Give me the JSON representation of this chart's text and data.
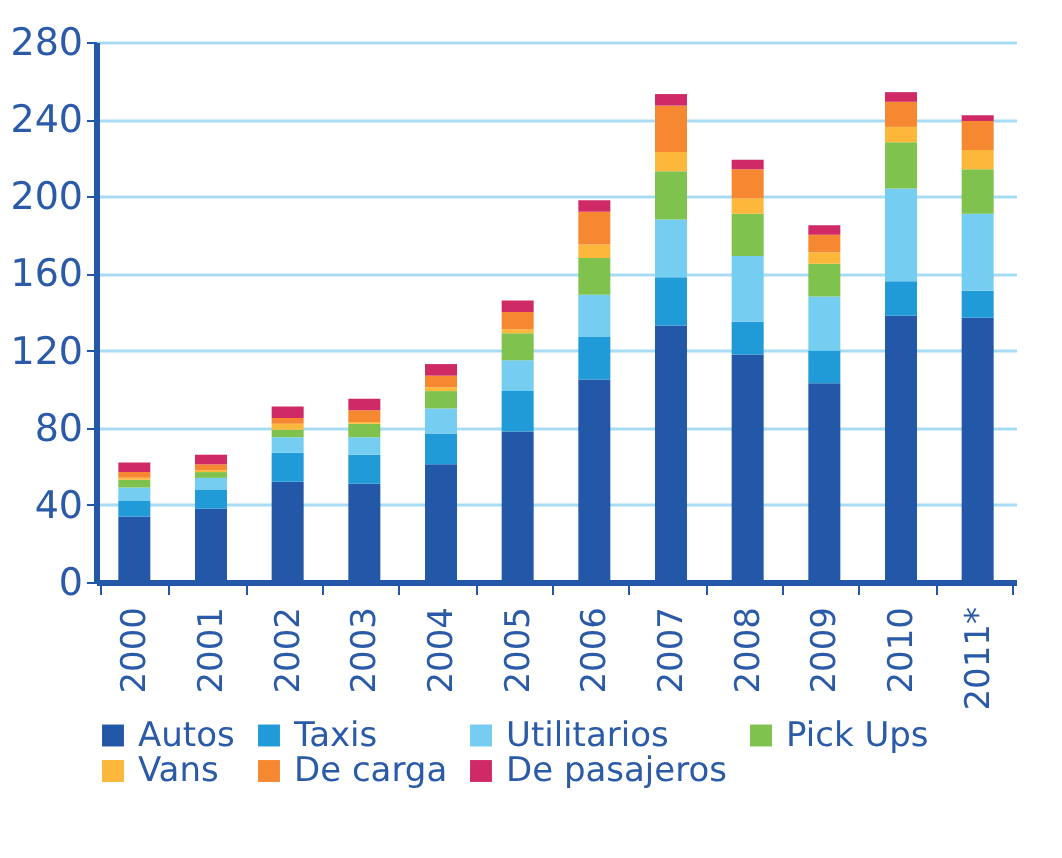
{
  "chart_data": {
    "type": "bar",
    "stacked": true,
    "legend": "bottom",
    "grid": "y",
    "categories": [
      "2000",
      "2001",
      "2002",
      "2003",
      "2004",
      "2005",
      "2006",
      "2007",
      "2008",
      "2009",
      "2010",
      "2011*"
    ],
    "ylim": [
      0,
      280
    ],
    "yticks": [
      0,
      40,
      80,
      120,
      160,
      200,
      240,
      280
    ],
    "series": [
      {
        "name": "Autos",
        "color": "#2358a8",
        "values": [
          34,
          38,
          52,
          51,
          61,
          78,
          105,
          133,
          118,
          103,
          138,
          137
        ]
      },
      {
        "name": "Taxis",
        "color": "#219bd7",
        "values": [
          8,
          10,
          15,
          15,
          16,
          21,
          22,
          25,
          17,
          17,
          18,
          14
        ]
      },
      {
        "name": "Utilitarios",
        "color": "#75cdf2",
        "values": [
          7,
          6,
          8,
          9,
          13,
          16,
          22,
          30,
          34,
          28,
          48,
          40
        ]
      },
      {
        "name": "Pick Ups",
        "color": "#7fc24e",
        "values": [
          4,
          3,
          4,
          7,
          9,
          14,
          19,
          25,
          22,
          17,
          24,
          23
        ]
      },
      {
        "name": "Vans",
        "color": "#fdb73a",
        "values": [
          1,
          1,
          3,
          1,
          2,
          2,
          7,
          10,
          8,
          6,
          8,
          10
        ]
      },
      {
        "name": "De carga",
        "color": "#f58831",
        "values": [
          3,
          3,
          3,
          6,
          6,
          9,
          17,
          24,
          15,
          9,
          13,
          15
        ]
      },
      {
        "name": "De pasajeros",
        "color": "#cf2a66",
        "values": [
          5,
          5,
          6,
          6,
          6,
          6,
          6,
          6,
          5,
          5,
          5,
          3
        ]
      }
    ]
  }
}
